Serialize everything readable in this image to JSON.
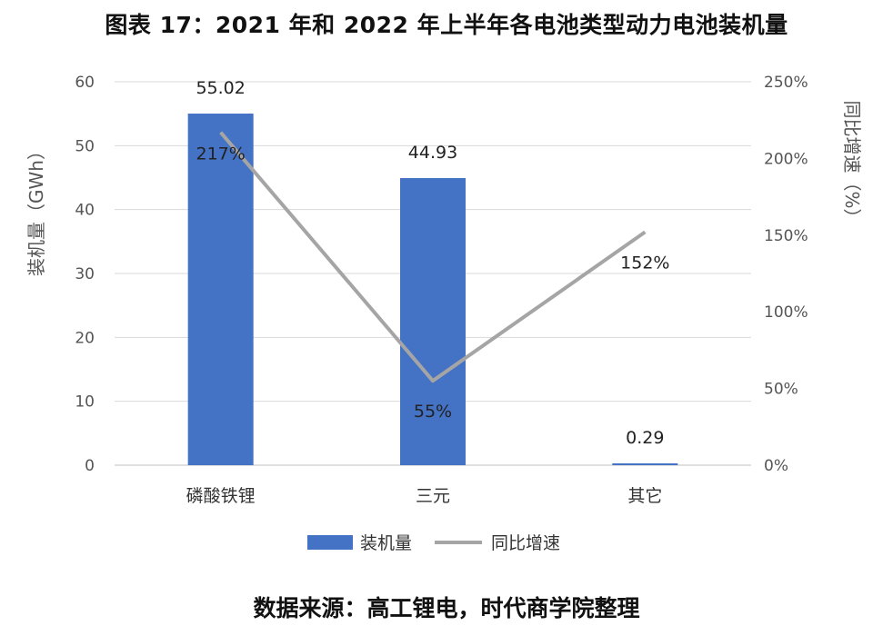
{
  "title": "图表 17：2021 年和 2022 年上半年各电池类型动力电池装机量",
  "source": "数据来源：高工锂电，时代商学院整理",
  "chart_data": {
    "type": "bar",
    "categories": [
      "磷酸铁锂",
      "三元",
      "其它"
    ],
    "series": [
      {
        "name": "装机量",
        "type": "bar",
        "axis": "left",
        "values": [
          55.02,
          44.93,
          0.29
        ],
        "labels": [
          "55.02",
          "44.93",
          "0.29"
        ],
        "color": "#4472C4"
      },
      {
        "name": "同比增速",
        "type": "line",
        "axis": "right",
        "values": [
          217,
          55,
          152
        ],
        "labels": [
          "217%",
          "55%",
          "152%"
        ],
        "color": "#A5A5A5"
      }
    ],
    "ylabel": "装机量（GWh）",
    "ylim": [
      0,
      60
    ],
    "yticks": [
      "0",
      "10",
      "20",
      "30",
      "40",
      "50",
      "60"
    ],
    "y2label": "同比增速（%）",
    "y2lim": [
      0,
      250
    ],
    "y2ticks": [
      "0%",
      "50%",
      "100%",
      "150%",
      "200%",
      "250%"
    ],
    "grid": true,
    "legend": "bottom"
  }
}
